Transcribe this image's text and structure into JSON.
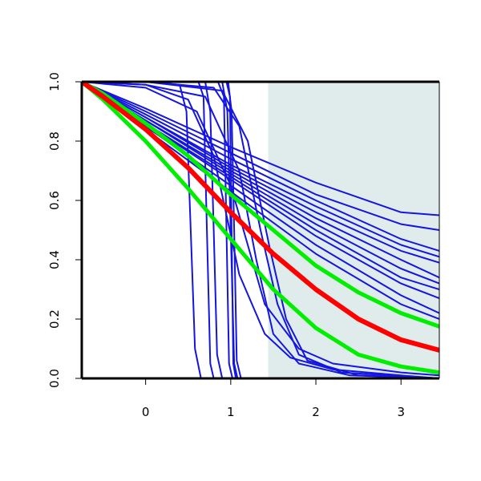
{
  "chart_data": {
    "type": "line",
    "title": "",
    "xlabel": "",
    "ylabel": "",
    "xlim": [
      -0.75,
      3.45
    ],
    "ylim": [
      0,
      1
    ],
    "xticks": [
      0,
      1,
      2,
      3
    ],
    "yticks": [
      0.0,
      0.2,
      0.4,
      0.6,
      0.8,
      1.0
    ],
    "xtick_labels": [
      "0",
      "1",
      "2",
      "3"
    ],
    "ytick_labels": [
      "0.0",
      "0.2",
      "0.4",
      "0.6",
      "0.8",
      "1.0"
    ],
    "shaded_region": {
      "x_from": 1.44,
      "x_to": 3.45,
      "color": "#e0ecec"
    },
    "grid": false,
    "legend": "none",
    "colors": {
      "fan": "#1515e0",
      "center": "#ff0000",
      "band": "#00ee00",
      "axes": "#000000"
    },
    "series": [
      {
        "group": "fan",
        "x": [
          -0.75,
          0.0,
          1.0,
          2.0,
          3.0,
          3.45
        ],
        "y": [
          1.0,
          0.91,
          0.78,
          0.66,
          0.56,
          0.55
        ]
      },
      {
        "group": "fan",
        "x": [
          -0.75,
          0.0,
          1.0,
          2.0,
          3.0,
          3.45
        ],
        "y": [
          1.0,
          0.9,
          0.76,
          0.62,
          0.52,
          0.5
        ]
      },
      {
        "group": "fan",
        "x": [
          -0.75,
          0.0,
          1.0,
          2.0,
          3.0,
          3.45
        ],
        "y": [
          1.0,
          0.89,
          0.74,
          0.6,
          0.47,
          0.43
        ]
      },
      {
        "group": "fan",
        "x": [
          -0.75,
          0.0,
          1.0,
          2.0,
          3.0,
          3.45
        ],
        "y": [
          1.0,
          0.88,
          0.72,
          0.58,
          0.45,
          0.41
        ]
      },
      {
        "group": "fan",
        "x": [
          -0.75,
          0.0,
          1.0,
          2.0,
          3.0,
          3.45
        ],
        "y": [
          1.0,
          0.88,
          0.71,
          0.56,
          0.43,
          0.39
        ]
      },
      {
        "group": "fan",
        "x": [
          -0.75,
          0.0,
          1.0,
          2.0,
          3.0,
          3.45
        ],
        "y": [
          1.0,
          0.87,
          0.7,
          0.54,
          0.4,
          0.34
        ]
      },
      {
        "group": "fan",
        "x": [
          -0.75,
          0.0,
          1.0,
          2.0,
          3.0,
          3.45
        ],
        "y": [
          1.0,
          0.87,
          0.69,
          0.52,
          0.37,
          0.32
        ]
      },
      {
        "group": "fan",
        "x": [
          -0.75,
          0.0,
          1.0,
          2.0,
          3.0,
          3.45
        ],
        "y": [
          1.0,
          0.86,
          0.68,
          0.5,
          0.34,
          0.3
        ]
      },
      {
        "group": "fan",
        "x": [
          -0.75,
          0.0,
          1.0,
          2.0,
          3.0,
          3.45
        ],
        "y": [
          1.0,
          0.86,
          0.67,
          0.48,
          0.32,
          0.27
        ]
      },
      {
        "group": "fan",
        "x": [
          -0.75,
          0.0,
          1.0,
          2.0,
          3.0,
          3.45
        ],
        "y": [
          1.0,
          0.85,
          0.65,
          0.45,
          0.28,
          0.22
        ]
      },
      {
        "group": "fan",
        "x": [
          -0.75,
          0.0,
          1.0,
          2.0,
          3.0,
          3.45
        ],
        "y": [
          1.0,
          0.84,
          0.63,
          0.42,
          0.25,
          0.2
        ]
      },
      {
        "group": "fan",
        "x": [
          -0.75,
          0.0,
          0.6,
          1.0,
          1.4,
          1.8,
          2.2,
          3.0,
          3.45
        ],
        "y": [
          1.0,
          0.98,
          0.9,
          0.65,
          0.25,
          0.1,
          0.05,
          0.02,
          0.01
        ]
      },
      {
        "group": "fan",
        "x": [
          -0.75,
          0.0,
          0.5,
          0.8,
          1.1,
          1.4,
          1.7,
          2.2,
          3.0,
          3.45
        ],
        "y": [
          1.0,
          0.99,
          0.94,
          0.75,
          0.35,
          0.15,
          0.07,
          0.03,
          0.01,
          0.0
        ]
      },
      {
        "group": "fan",
        "x": [
          -0.75,
          0.0,
          0.7,
          1.1,
          1.3,
          1.5,
          1.8,
          2.4,
          3.45
        ],
        "y": [
          1.0,
          0.99,
          0.95,
          0.7,
          0.4,
          0.15,
          0.05,
          0.01,
          0.0
        ]
      },
      {
        "group": "fan",
        "x": [
          -0.75,
          0.0,
          0.9,
          1.2,
          1.45,
          1.65,
          1.9,
          2.5,
          3.45
        ],
        "y": [
          1.0,
          1.0,
          0.97,
          0.8,
          0.45,
          0.2,
          0.06,
          0.01,
          0.0
        ]
      },
      {
        "group": "fan",
        "x": [
          -0.75,
          0.0,
          0.8,
          1.1,
          1.35,
          1.55,
          1.8,
          2.3,
          3.45
        ],
        "y": [
          1.0,
          1.0,
          0.98,
          0.85,
          0.5,
          0.25,
          0.08,
          0.02,
          0.0
        ]
      },
      {
        "group": "fan",
        "x": [
          -0.75,
          0.0,
          0.4,
          0.48,
          0.53,
          0.58,
          0.65,
          3.45
        ],
        "y": [
          1.0,
          1.0,
          0.99,
          0.9,
          0.5,
          0.1,
          0.0,
          0.0
        ]
      },
      {
        "group": "fan",
        "x": [
          -0.75,
          0.0,
          0.62,
          0.68,
          0.72,
          0.76,
          0.8,
          3.45
        ],
        "y": [
          1.0,
          1.0,
          1.0,
          0.95,
          0.5,
          0.05,
          0.0,
          0.0
        ]
      },
      {
        "group": "fan",
        "x": [
          -0.75,
          0.0,
          0.7,
          0.76,
          0.8,
          0.84,
          0.9,
          3.45
        ],
        "y": [
          1.0,
          1.0,
          1.0,
          0.9,
          0.5,
          0.08,
          0.0,
          0.0
        ]
      },
      {
        "group": "fan",
        "x": [
          -0.75,
          0.0,
          0.85,
          0.92,
          0.95,
          0.98,
          1.02,
          3.45
        ],
        "y": [
          1.0,
          1.0,
          1.0,
          0.95,
          0.5,
          0.05,
          0.0,
          0.0
        ]
      },
      {
        "group": "fan",
        "x": [
          -0.75,
          0.0,
          0.9,
          0.96,
          1.0,
          1.04,
          1.08,
          3.45
        ],
        "y": [
          1.0,
          1.0,
          1.0,
          0.9,
          0.5,
          0.05,
          0.0,
          0.0
        ]
      },
      {
        "group": "fan",
        "x": [
          -0.75,
          0.0,
          0.95,
          0.99,
          1.01,
          1.03,
          1.06,
          3.45
        ],
        "y": [
          1.0,
          1.0,
          1.0,
          0.95,
          0.5,
          0.05,
          0.0,
          0.0
        ]
      },
      {
        "group": "fan",
        "x": [
          -0.75,
          0.0,
          0.97,
          1.01,
          1.04,
          1.07,
          1.12,
          3.45
        ],
        "y": [
          1.0,
          1.0,
          1.0,
          0.9,
          0.5,
          0.06,
          0.0,
          0.0
        ]
      },
      {
        "group": "band",
        "x": [
          -0.75,
          -0.5,
          0.0,
          0.5,
          1.0,
          1.5,
          2.0,
          2.5,
          3.0,
          3.45
        ],
        "y": [
          1.0,
          0.96,
          0.86,
          0.75,
          0.62,
          0.5,
          0.38,
          0.29,
          0.22,
          0.175
        ]
      },
      {
        "group": "band",
        "x": [
          -0.75,
          -0.5,
          0.0,
          0.5,
          1.0,
          1.5,
          2.0,
          2.5,
          3.0,
          3.45
        ],
        "y": [
          1.0,
          0.94,
          0.8,
          0.64,
          0.47,
          0.3,
          0.17,
          0.08,
          0.04,
          0.02
        ]
      },
      {
        "group": "center",
        "x": [
          -0.75,
          -0.5,
          0.0,
          0.5,
          1.0,
          1.5,
          2.0,
          2.5,
          3.0,
          3.45
        ],
        "y": [
          1.0,
          0.95,
          0.84,
          0.71,
          0.56,
          0.42,
          0.3,
          0.2,
          0.13,
          0.095
        ]
      }
    ]
  }
}
